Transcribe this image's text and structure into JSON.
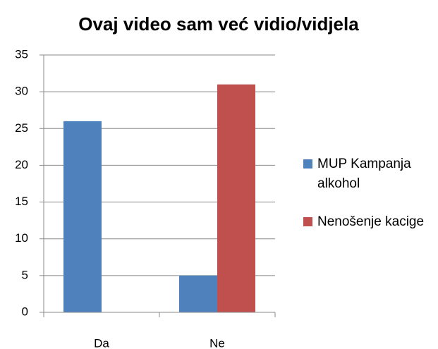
{
  "chart_data": {
    "type": "bar",
    "title": "Ovaj video sam već vidio/vidjela",
    "categories": [
      "Da",
      "Ne"
    ],
    "series": [
      {
        "name": "MUP Kampanja alkohol",
        "color": "#4f81bd",
        "values": [
          26,
          5
        ]
      },
      {
        "name": "Nenošenje kacige",
        "color": "#c0504d",
        "values": [
          0,
          31
        ]
      }
    ],
    "ylim": [
      0,
      35
    ],
    "yticks": [
      0,
      5,
      10,
      15,
      20,
      25,
      30,
      35
    ],
    "grid": true,
    "legend": "right"
  }
}
